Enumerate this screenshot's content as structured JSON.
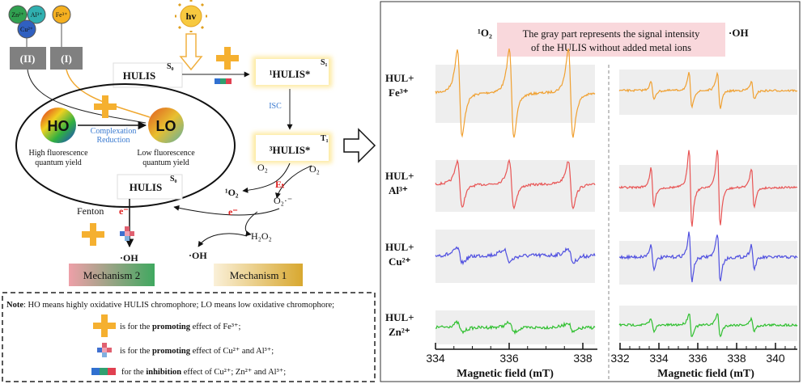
{
  "diagram": {
    "ions": {
      "zn": "Zn²⁺",
      "al": "Al³⁺",
      "cu": "Cu²⁺",
      "fe": "Fe³⁺"
    },
    "pathways": [
      "(II)",
      "(I)"
    ],
    "light": "hv",
    "hulis_top": {
      "label": "HULIS",
      "state": "S₀"
    },
    "singlet": {
      "label": "¹HULIS*",
      "state": "S₁"
    },
    "isc": "ISC",
    "triplet": {
      "label": "³HULIS*",
      "state": "T₁"
    },
    "ho": {
      "label": "HO",
      "caption": [
        "High fluorescence",
        "quantum yield"
      ]
    },
    "lo": {
      "label": "LO",
      "caption": [
        "Low fluorescence",
        "quantum yield"
      ]
    },
    "complexation": [
      "Complexation",
      "Reduction"
    ],
    "hulis_bottom": {
      "label": "HULIS",
      "state": "S₀"
    },
    "species": {
      "o2_a": "O₂",
      "o2_b": "O₂",
      "et": "Eₜ",
      "singlet_oxygen": "¹O₂",
      "superoxide": "O₂·⁻",
      "electron_1": "e⁻",
      "electron_2": "e⁻",
      "h2o2": "H₂O₂",
      "oh_1": "·OH",
      "fenton": "Fenton",
      "oh_2": "·OH"
    },
    "mechanisms": [
      "Mechanism 2",
      "Mechanism 1"
    ]
  },
  "note": {
    "lead": "Note",
    "text": ": HO means highly oxidative HULIS chromophore; LO means low oxidative chromophore;",
    "items": [
      [
        "is for the ",
        "promoting",
        " effect of Fe³⁺;"
      ],
      [
        "is for the ",
        "promoting",
        " effect of Cu²⁺ and Al³⁺;"
      ],
      [
        "for the ",
        "inhibition",
        " effect of Cu²⁺; Zn²⁺ and Al³⁺;"
      ]
    ]
  },
  "spectra": {
    "column_titles": [
      "¹O₂",
      "·OH"
    ],
    "caption": [
      "The gray part represents the signal intensity",
      "of the HULIS without added metal ions"
    ],
    "rows": [
      {
        "prefix": "HUL+",
        "ion": "Fe³⁺"
      },
      {
        "prefix": "HUL+",
        "ion": "Al³⁺"
      },
      {
        "prefix": "HUL+",
        "ion": "Cu²⁺"
      },
      {
        "prefix": "HUL+",
        "ion": "Zn²⁺"
      }
    ],
    "axes": [
      {
        "ticks": [
          334,
          336,
          338
        ],
        "label": "Magnetic field (mT)"
      },
      {
        "ticks": [
          332,
          334,
          336,
          338,
          340
        ],
        "label": "Magnetic field (mT)"
      }
    ]
  }
}
